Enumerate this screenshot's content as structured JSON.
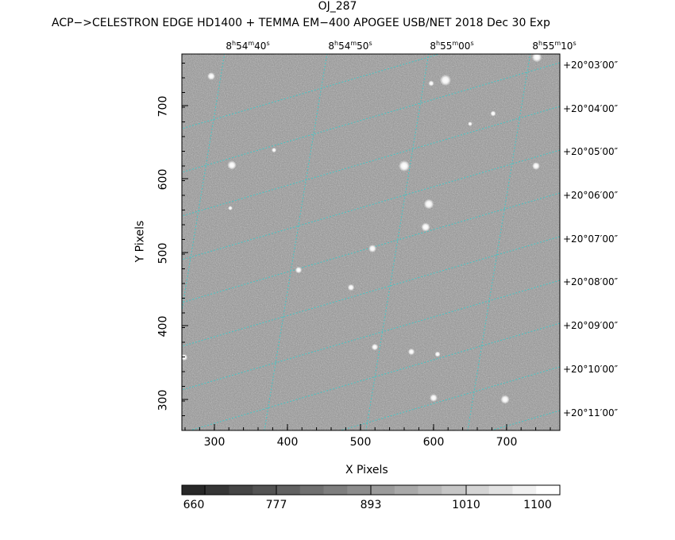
{
  "header": {
    "title": "OJ_287",
    "subtitle": "ACP−>CELESTRON EDGE HD1400 + TEMMA EM−400 APOGEE USB/NET   2018 Dec 30    Exp"
  },
  "axes": {
    "x_label": "X Pixels",
    "y_label": "Y Pixels",
    "x_ticks": [
      "300",
      "400",
      "500",
      "600",
      "700"
    ],
    "y_ticks": [
      "300",
      "400",
      "500",
      "600",
      "700"
    ],
    "x_range": [
      255,
      772
    ],
    "y_range": [
      258,
      764
    ]
  },
  "ra_labels": [
    {
      "h": "8",
      "m": "54",
      "s": "40"
    },
    {
      "h": "8",
      "m": "54",
      "s": "50"
    },
    {
      "h": "8",
      "m": "55",
      "s": "00"
    },
    {
      "h": "8",
      "m": "55",
      "s": "10"
    }
  ],
  "dec_labels": [
    "+20°03′00″",
    "+20°04′00″",
    "+20°05′00″",
    "+20°06′00″",
    "+20°07′00″",
    "+20°08′00″",
    "+20°09′00″",
    "+20°10′00″",
    "+20°11′00″"
  ],
  "colorbar": {
    "ticks": [
      "660",
      "777",
      "893",
      "1010",
      "1100"
    ],
    "min": 660,
    "max": 1110
  },
  "colors": {
    "grid": "#33cccc",
    "background": "#8c8c8c"
  }
}
